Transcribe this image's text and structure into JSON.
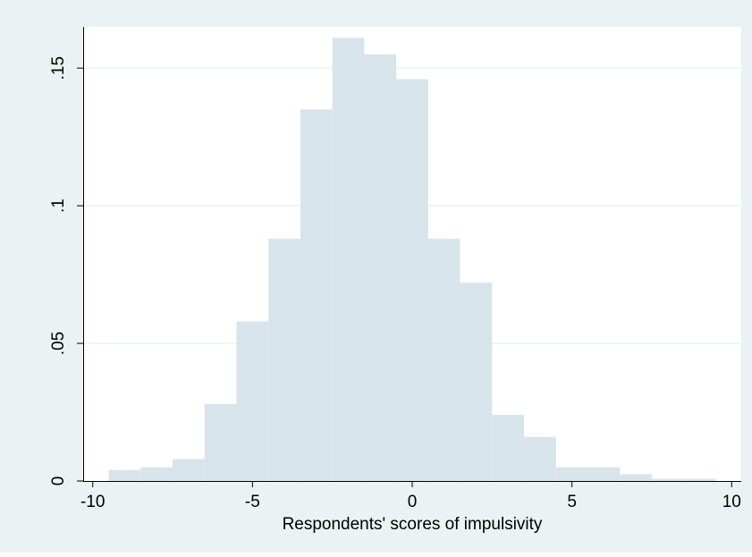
{
  "chart_data": {
    "type": "bar",
    "subtype": "histogram",
    "title": "",
    "xlabel": "Respondents' scores of impulsivity",
    "ylabel": "",
    "xlim": [
      -10.3,
      10.3
    ],
    "ylim": [
      0,
      0.165
    ],
    "xticks": [
      -10,
      -5,
      0,
      5,
      10
    ],
    "xtick_labels": [
      "-10",
      "-5",
      "0",
      "5",
      "10"
    ],
    "yticks": [
      0,
      0.05,
      0.1,
      0.15
    ],
    "ytick_labels": [
      "0",
      ".05",
      ".1",
      ".15"
    ],
    "grid": true,
    "colors": {
      "outer_background": "#eaf2f3",
      "plot_background": "#ffffff",
      "bar_fill": "#d8e4eb",
      "gridline": "#e6eef1",
      "axis": "#000000"
    },
    "bins": [
      {
        "x0": -9.5,
        "x1": -8.5,
        "density": 0.004
      },
      {
        "x0": -8.5,
        "x1": -7.5,
        "density": 0.005
      },
      {
        "x0": -7.5,
        "x1": -6.5,
        "density": 0.008
      },
      {
        "x0": -6.5,
        "x1": -5.5,
        "density": 0.028
      },
      {
        "x0": -5.5,
        "x1": -4.5,
        "density": 0.058
      },
      {
        "x0": -4.5,
        "x1": -3.5,
        "density": 0.088
      },
      {
        "x0": -3.5,
        "x1": -2.5,
        "density": 0.135
      },
      {
        "x0": -2.5,
        "x1": -1.5,
        "density": 0.161
      },
      {
        "x0": -1.5,
        "x1": -0.5,
        "density": 0.155
      },
      {
        "x0": -0.5,
        "x1": 0.5,
        "density": 0.146
      },
      {
        "x0": 0.5,
        "x1": 1.5,
        "density": 0.088
      },
      {
        "x0": 1.5,
        "x1": 2.5,
        "density": 0.072
      },
      {
        "x0": 2.5,
        "x1": 3.5,
        "density": 0.024
      },
      {
        "x0": 3.5,
        "x1": 4.5,
        "density": 0.016
      },
      {
        "x0": 4.5,
        "x1": 5.5,
        "density": 0.005
      },
      {
        "x0": 5.5,
        "x1": 6.5,
        "density": 0.005
      },
      {
        "x0": 6.5,
        "x1": 7.5,
        "density": 0.0025
      },
      {
        "x0": 7.5,
        "x1": 8.5,
        "density": 0.0008
      },
      {
        "x0": 8.5,
        "x1": 9.5,
        "density": 0.0008
      }
    ]
  }
}
